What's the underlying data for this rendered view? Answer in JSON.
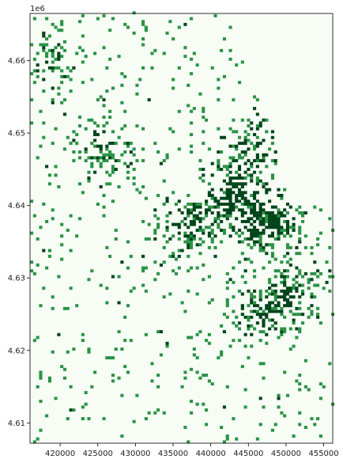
{
  "chart_data": {
    "type": "heatmap",
    "title": "",
    "xlabel": "",
    "ylabel": "",
    "y_offset_label": "1e6",
    "colormap": "Greens",
    "colors": {
      "low": "#f7fcf5",
      "mid": "#2b9346",
      "high": "#00441b"
    },
    "xlim": [
      416000,
      456200
    ],
    "ylim": [
      4607200,
      4666500
    ],
    "x_ticks": [
      {
        "value": 420000,
        "label": "420000"
      },
      {
        "value": 425000,
        "label": "425000"
      },
      {
        "value": 430000,
        "label": "430000"
      },
      {
        "value": 435000,
        "label": "435000"
      },
      {
        "value": 440000,
        "label": "440000"
      },
      {
        "value": 445000,
        "label": "445000"
      },
      {
        "value": 450000,
        "label": "450000"
      },
      {
        "value": 455000,
        "label": "455000"
      }
    ],
    "y_ticks": [
      {
        "value": 4610000,
        "label": "4.61"
      },
      {
        "value": 4620000,
        "label": "4.62"
      },
      {
        "value": 4630000,
        "label": "4.63"
      },
      {
        "value": 4640000,
        "label": "4.64"
      },
      {
        "value": 4650000,
        "label": "4.65"
      },
      {
        "value": 4660000,
        "label": "4.66"
      }
    ],
    "grid": false,
    "cell_size_m": 400,
    "density_hotspots": [
      {
        "x": 447500,
        "y": 4637500,
        "relative_density": 1.0
      },
      {
        "x": 443500,
        "y": 4641500,
        "relative_density": 0.85
      },
      {
        "x": 437500,
        "y": 4637500,
        "relative_density": 0.7
      },
      {
        "x": 446500,
        "y": 4625000,
        "relative_density": 0.6
      },
      {
        "x": 450500,
        "y": 4628000,
        "relative_density": 0.55
      },
      {
        "x": 445000,
        "y": 4648000,
        "relative_density": 0.55
      },
      {
        "x": 426000,
        "y": 4647500,
        "relative_density": 0.5
      },
      {
        "x": 418000,
        "y": 4660000,
        "relative_density": 0.35
      }
    ]
  }
}
